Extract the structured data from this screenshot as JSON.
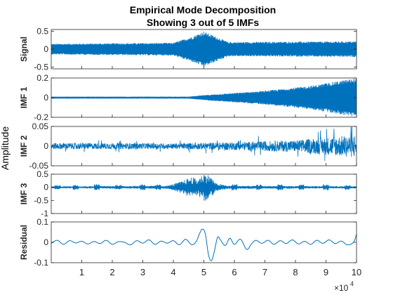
{
  "chart_data": {
    "type": "line",
    "title": "Empirical Mode Decomposition",
    "subtitle": "Showing 3 out of 5 IMFs",
    "ylabel": "Amplitude",
    "xlim": [
      0,
      100000
    ],
    "x_ticks": [
      1,
      2,
      3,
      4,
      5,
      6,
      7,
      8,
      9,
      10
    ],
    "x_tick_scale": 10000,
    "x_exponent_label": "×10",
    "x_exponent_power": "4",
    "grid": false,
    "line_color": "#0072BD",
    "panels": [
      {
        "name": "Signal",
        "ylim": [
          -0.55,
          0.55
        ],
        "yticks": [
          -0.5,
          0,
          0.5
        ],
        "ytick_labels": [
          "-0.5",
          "0",
          "0.5"
        ],
        "envelope": [
          [
            0,
            0.15
          ],
          [
            40000,
            0.18
          ],
          [
            46000,
            0.35
          ],
          [
            50000,
            0.5
          ],
          [
            54000,
            0.35
          ],
          [
            58000,
            0.2
          ],
          [
            100000,
            0.22
          ]
        ],
        "bursts": [],
        "center_offset": 0,
        "kind": "dense"
      },
      {
        "name": "IMF 1",
        "ylim": [
          -0.2,
          0.2
        ],
        "yticks": [
          -0.2,
          0,
          0.2
        ],
        "ytick_labels": [
          "-0.2",
          "0",
          "0.2"
        ],
        "envelope": [
          [
            0,
            0.01
          ],
          [
            45000,
            0.01
          ],
          [
            50000,
            0.025
          ],
          [
            70000,
            0.07
          ],
          [
            85000,
            0.12
          ],
          [
            100000,
            0.2
          ]
        ],
        "bursts": [],
        "center_offset": 0,
        "kind": "dense"
      },
      {
        "name": "IMF 2",
        "ylim": [
          -0.05,
          0.05
        ],
        "yticks": [
          -0.05,
          0,
          0.05
        ],
        "ytick_labels": [
          "-0.05",
          "0",
          "0.05"
        ],
        "envelope": [
          [
            0,
            0.008
          ],
          [
            40000,
            0.007
          ],
          [
            60000,
            0.01
          ],
          [
            80000,
            0.015
          ],
          [
            100000,
            0.03
          ]
        ],
        "bursts": [],
        "center_offset": 0,
        "kind": "noisy"
      },
      {
        "name": "IMF 3",
        "ylim": [
          -1,
          0.5
        ],
        "yticks": [
          -1,
          -0.5,
          0,
          0.5
        ],
        "ytick_labels": [
          "-1",
          "-0.5",
          "0",
          "0.5"
        ],
        "envelope": [
          [
            0,
            0.04
          ],
          [
            38000,
            0.06
          ],
          [
            42000,
            0.2
          ],
          [
            46000,
            0.4
          ],
          [
            48000,
            0.3
          ],
          [
            50000,
            0.55
          ],
          [
            52000,
            0.45
          ],
          [
            54000,
            0.15
          ],
          [
            58000,
            0.06
          ],
          [
            100000,
            0.04
          ]
        ],
        "bursts": [
          [
            2000,
            0.08
          ],
          [
            8000,
            0.1
          ],
          [
            15000,
            0.12
          ],
          [
            22000,
            0.1
          ],
          [
            30000,
            0.12
          ],
          [
            35000,
            0.1
          ],
          [
            60000,
            0.12
          ],
          [
            68000,
            0.1
          ],
          [
            75000,
            0.12
          ],
          [
            82000,
            0.1
          ],
          [
            90000,
            0.12
          ],
          [
            97000,
            0.1
          ]
        ],
        "center_offset": 0,
        "kind": "bursty"
      },
      {
        "name": "Residual",
        "ylim": [
          -0.1,
          0.1
        ],
        "yticks": [
          -0.1,
          0,
          0.1
        ],
        "ytick_labels": [
          "-0.1",
          "0",
          "0.1"
        ],
        "points": [
          [
            0,
            -0.005
          ],
          [
            2000,
            0.01
          ],
          [
            4000,
            -0.01
          ],
          [
            6000,
            0.008
          ],
          [
            8000,
            -0.003
          ],
          [
            10000,
            0.005
          ],
          [
            12000,
            -0.008
          ],
          [
            14000,
            0.004
          ],
          [
            16000,
            -0.006
          ],
          [
            18000,
            0.01
          ],
          [
            20000,
            -0.01
          ],
          [
            22000,
            0.003
          ],
          [
            24000,
            0.0
          ],
          [
            26000,
            -0.012
          ],
          [
            28000,
            0.008
          ],
          [
            30000,
            -0.004
          ],
          [
            32000,
            0.012
          ],
          [
            34000,
            -0.01
          ],
          [
            36000,
            0.006
          ],
          [
            38000,
            -0.004
          ],
          [
            40000,
            0.008
          ],
          [
            42000,
            -0.012
          ],
          [
            44000,
            0.015
          ],
          [
            46000,
            -0.012
          ],
          [
            47500,
            0.004
          ],
          [
            48500,
            0.04
          ],
          [
            49500,
            0.065
          ],
          [
            50500,
            0.04
          ],
          [
            51500,
            -0.06
          ],
          [
            52500,
            -0.09
          ],
          [
            53500,
            -0.04
          ],
          [
            54500,
            0.025
          ],
          [
            55500,
            0.01
          ],
          [
            57000,
            -0.015
          ],
          [
            58500,
            0.02
          ],
          [
            60000,
            -0.01
          ],
          [
            62000,
            0.015
          ],
          [
            64000,
            -0.035
          ],
          [
            65500,
            -0.01
          ],
          [
            67000,
            0.01
          ],
          [
            69000,
            -0.005
          ],
          [
            71000,
            0.01
          ],
          [
            73000,
            -0.01
          ],
          [
            75000,
            0.008
          ],
          [
            77000,
            -0.006
          ],
          [
            79000,
            0.012
          ],
          [
            81000,
            -0.008
          ],
          [
            83000,
            0.005
          ],
          [
            85000,
            -0.01
          ],
          [
            87000,
            0.01
          ],
          [
            89000,
            -0.005
          ],
          [
            91000,
            0.012
          ],
          [
            93000,
            -0.006
          ],
          [
            95000,
            0.006
          ],
          [
            97000,
            -0.012
          ],
          [
            99000,
            0.0
          ],
          [
            100000,
            0.04
          ]
        ],
        "kind": "smooth"
      }
    ]
  }
}
